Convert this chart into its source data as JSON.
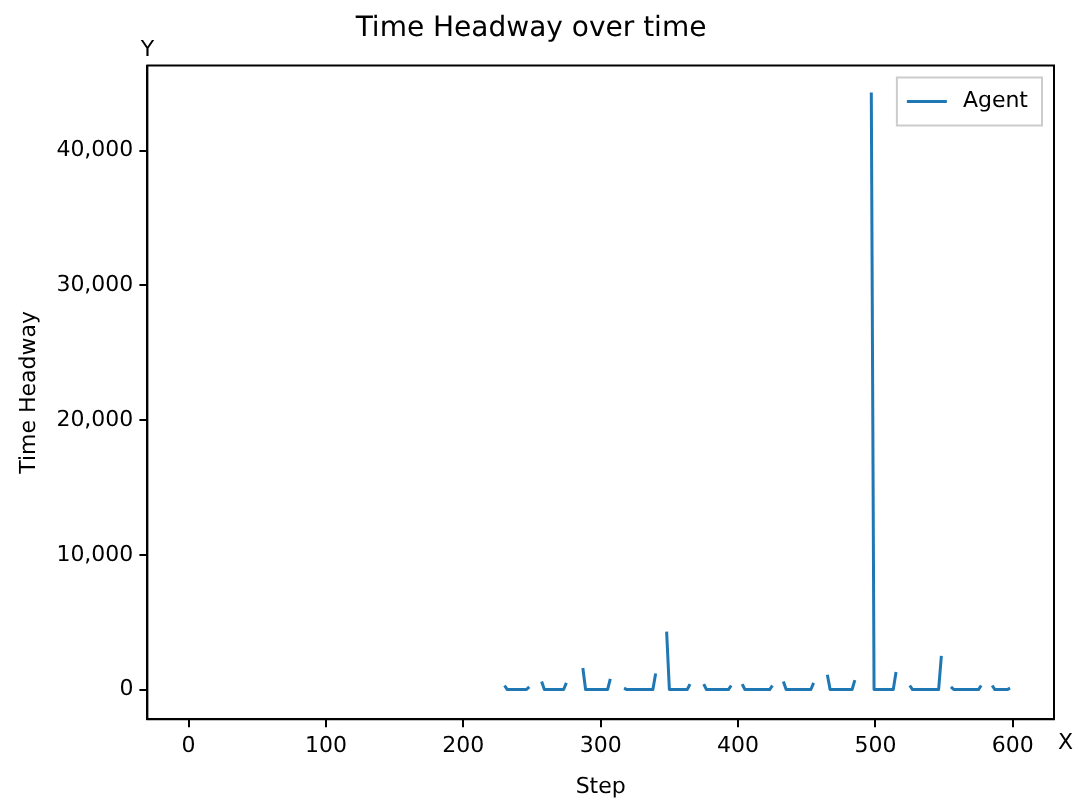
{
  "chart_data": {
    "type": "line",
    "title": "Time Headway over time",
    "xlabel": "Step",
    "ylabel": "Time Headway",
    "annotations": [
      "Y",
      "X"
    ],
    "x": [
      230,
      232,
      246,
      248,
      252,
      257,
      259,
      273,
      275,
      281,
      287,
      289,
      305,
      307,
      312,
      317,
      319,
      338,
      340,
      344,
      348,
      350,
      363,
      365,
      370,
      375,
      377,
      393,
      395,
      399,
      403,
      405,
      423,
      425,
      429,
      433,
      435,
      453,
      455,
      460,
      465,
      467,
      483,
      485,
      490,
      497,
      499,
      513,
      515,
      520,
      525,
      527,
      546,
      548,
      551,
      555,
      557,
      575,
      577,
      581,
      585,
      587,
      596,
      598
    ],
    "series": [
      {
        "name": "Agent",
        "color": "#1f77b4",
        "values": [
          300,
          0,
          0,
          200,
          null,
          600,
          0,
          0,
          500,
          null,
          1600,
          0,
          0,
          800,
          null,
          100,
          0,
          0,
          1200,
          null,
          4300,
          0,
          0,
          400,
          null,
          400,
          0,
          0,
          300,
          null,
          400,
          0,
          0,
          300,
          null,
          600,
          0,
          0,
          500,
          null,
          1100,
          0,
          0,
          700,
          null,
          44300,
          0,
          0,
          1300,
          null,
          300,
          0,
          0,
          2500,
          null,
          200,
          0,
          0,
          300,
          null,
          300,
          0,
          0,
          100
        ]
      }
    ],
    "xlim": [
      -30,
      630
    ],
    "xticks": [
      0,
      100,
      200,
      300,
      400,
      500,
      600
    ],
    "ylim": [
      -2200,
      46300
    ],
    "yticks": [
      {
        "value": 0,
        "label": "0"
      },
      {
        "value": 10000,
        "label": "10,000"
      },
      {
        "value": 20000,
        "label": "20,000"
      },
      {
        "value": 30000,
        "label": "30,000"
      },
      {
        "value": 40000,
        "label": "40,000"
      }
    ],
    "grid": false,
    "legend": "top right",
    "marker": "none",
    "line_style": "solid"
  }
}
